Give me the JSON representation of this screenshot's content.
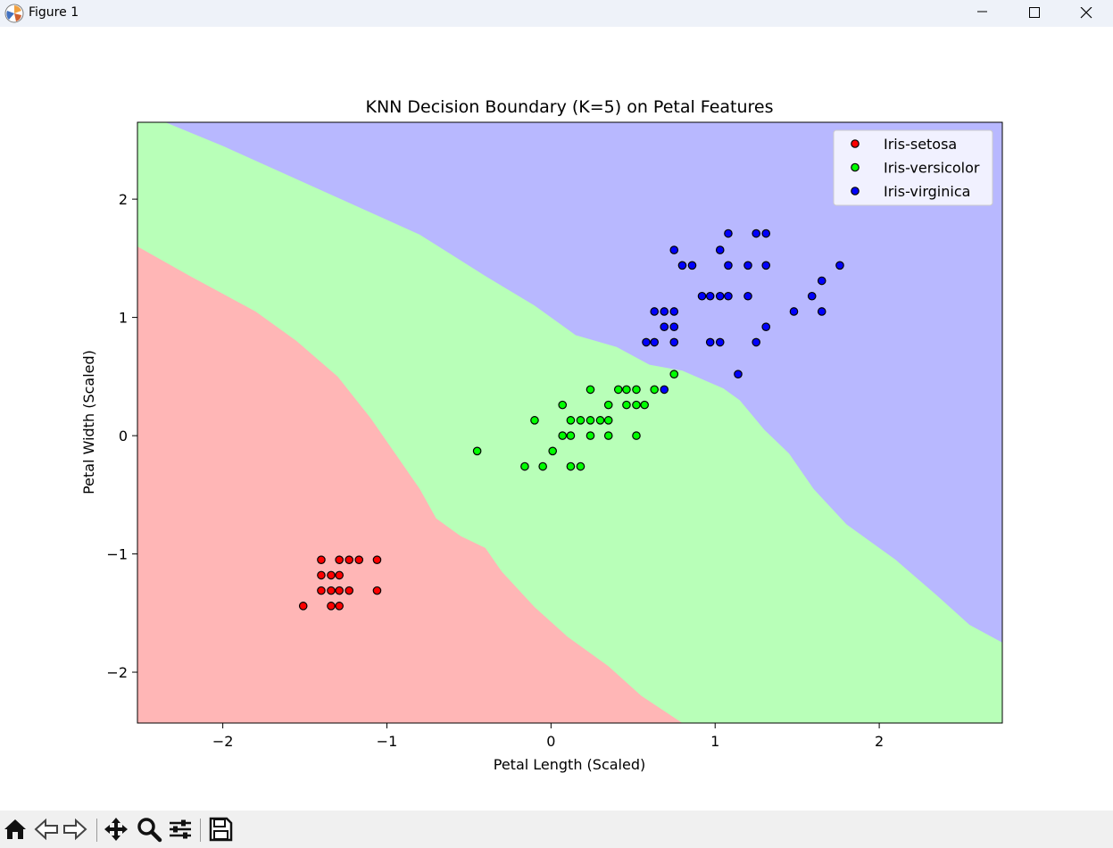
{
  "window": {
    "title": "Figure 1"
  },
  "chart_data": {
    "type": "scatter",
    "title": "KNN Decision Boundary (K=5) on Petal Features",
    "xlabel": "Petal Length (Scaled)",
    "ylabel": "Petal Width (Scaled)",
    "xlim": [
      -2.52,
      2.75
    ],
    "ylim": [
      -2.43,
      2.65
    ],
    "xticks": [
      -2,
      -1,
      0,
      1,
      2
    ],
    "yticks": [
      -2,
      -1,
      0,
      1,
      2
    ],
    "grid": false,
    "legend_position": "top-right",
    "regions": [
      {
        "class": "Iris-setosa",
        "color": "#ffb6b6"
      },
      {
        "class": "Iris-versicolor",
        "color": "#b8ffb8"
      },
      {
        "class": "Iris-virginica",
        "color": "#b8b8ff"
      }
    ],
    "boundary_setosa_versicolor": [
      [
        -2.52,
        1.6
      ],
      [
        -2.2,
        1.35
      ],
      [
        -1.8,
        1.05
      ],
      [
        -1.55,
        0.8
      ],
      [
        -1.3,
        0.5
      ],
      [
        -1.1,
        0.15
      ],
      [
        -0.95,
        -0.15
      ],
      [
        -0.8,
        -0.45
      ],
      [
        -0.7,
        -0.7
      ],
      [
        -0.55,
        -0.85
      ],
      [
        -0.4,
        -0.95
      ],
      [
        -0.3,
        -1.15
      ],
      [
        -0.1,
        -1.45
      ],
      [
        0.1,
        -1.7
      ],
      [
        0.35,
        -1.95
      ],
      [
        0.55,
        -2.2
      ],
      [
        0.8,
        -2.43
      ]
    ],
    "boundary_versicolor_virginica": [
      [
        -2.35,
        2.65
      ],
      [
        -2.0,
        2.45
      ],
      [
        -1.6,
        2.2
      ],
      [
        -1.2,
        1.95
      ],
      [
        -0.8,
        1.7
      ],
      [
        -0.4,
        1.35
      ],
      [
        -0.1,
        1.1
      ],
      [
        0.15,
        0.85
      ],
      [
        0.4,
        0.75
      ],
      [
        0.6,
        0.6
      ],
      [
        0.8,
        0.55
      ],
      [
        1.05,
        0.4
      ],
      [
        1.15,
        0.3
      ],
      [
        1.3,
        0.05
      ],
      [
        1.45,
        -0.15
      ],
      [
        1.6,
        -0.45
      ],
      [
        1.8,
        -0.75
      ],
      [
        2.1,
        -1.05
      ],
      [
        2.35,
        -1.35
      ],
      [
        2.55,
        -1.6
      ],
      [
        2.75,
        -1.75
      ]
    ],
    "series": [
      {
        "name": "Iris-setosa",
        "color": "#ff0000",
        "points": [
          [
            -1.4,
            -1.05
          ],
          [
            -1.29,
            -1.05
          ],
          [
            -1.23,
            -1.05
          ],
          [
            -1.17,
            -1.05
          ],
          [
            -1.06,
            -1.05
          ],
          [
            -1.4,
            -1.18
          ],
          [
            -1.34,
            -1.18
          ],
          [
            -1.29,
            -1.18
          ],
          [
            -1.4,
            -1.31
          ],
          [
            -1.34,
            -1.31
          ],
          [
            -1.29,
            -1.31
          ],
          [
            -1.23,
            -1.31
          ],
          [
            -1.06,
            -1.31
          ],
          [
            -1.51,
            -1.44
          ],
          [
            -1.34,
            -1.44
          ],
          [
            -1.29,
            -1.44
          ]
        ]
      },
      {
        "name": "Iris-versicolor",
        "color": "#00ff00",
        "points": [
          [
            -0.45,
            -0.13
          ],
          [
            -0.16,
            -0.26
          ],
          [
            -0.05,
            -0.26
          ],
          [
            0.01,
            -0.13
          ],
          [
            0.12,
            -0.26
          ],
          [
            0.18,
            -0.26
          ],
          [
            -0.1,
            0.13
          ],
          [
            0.07,
            0.26
          ],
          [
            0.07,
            0.0
          ],
          [
            0.12,
            0.13
          ],
          [
            0.12,
            0.0
          ],
          [
            0.18,
            0.13
          ],
          [
            0.24,
            0.13
          ],
          [
            0.24,
            0.0
          ],
          [
            0.24,
            0.39
          ],
          [
            0.3,
            0.13
          ],
          [
            0.35,
            0.13
          ],
          [
            0.35,
            0.26
          ],
          [
            0.35,
            0.0
          ],
          [
            0.41,
            0.39
          ],
          [
            0.46,
            0.39
          ],
          [
            0.46,
            0.26
          ],
          [
            0.52,
            0.39
          ],
          [
            0.52,
            0.26
          ],
          [
            0.52,
            0.0
          ],
          [
            0.57,
            0.26
          ],
          [
            0.63,
            0.39
          ],
          [
            0.75,
            0.52
          ]
        ]
      },
      {
        "name": "Iris-virginica",
        "color": "#0000ff",
        "points": [
          [
            0.69,
            0.39
          ],
          [
            0.58,
            0.79
          ],
          [
            0.63,
            0.79
          ],
          [
            0.75,
            0.79
          ],
          [
            0.63,
            1.05
          ],
          [
            0.69,
            1.05
          ],
          [
            0.75,
            1.05
          ],
          [
            0.69,
            0.92
          ],
          [
            0.75,
            0.92
          ],
          [
            0.75,
            1.57
          ],
          [
            0.8,
            1.44
          ],
          [
            0.86,
            1.44
          ],
          [
            0.92,
            1.18
          ],
          [
            0.97,
            1.18
          ],
          [
            0.97,
            0.79
          ],
          [
            1.03,
            1.18
          ],
          [
            1.03,
            0.79
          ],
          [
            1.03,
            1.57
          ],
          [
            1.08,
            1.71
          ],
          [
            1.08,
            1.44
          ],
          [
            1.08,
            1.18
          ],
          [
            1.14,
            0.52
          ],
          [
            1.2,
            1.44
          ],
          [
            1.2,
            1.18
          ],
          [
            1.25,
            1.71
          ],
          [
            1.25,
            0.79
          ],
          [
            1.31,
            1.71
          ],
          [
            1.31,
            1.44
          ],
          [
            1.31,
            0.92
          ],
          [
            1.48,
            1.05
          ],
          [
            1.59,
            1.18
          ],
          [
            1.65,
            1.31
          ],
          [
            1.65,
            1.05
          ],
          [
            1.76,
            1.44
          ]
        ]
      }
    ]
  },
  "toolbar": {
    "home": "home-icon",
    "back": "back-arrow-icon",
    "forward": "forward-arrow-icon",
    "pan": "pan-move-icon",
    "zoom": "zoom-magnifier-icon",
    "configure": "configure-subplots-icon",
    "save": "save-disk-icon"
  }
}
